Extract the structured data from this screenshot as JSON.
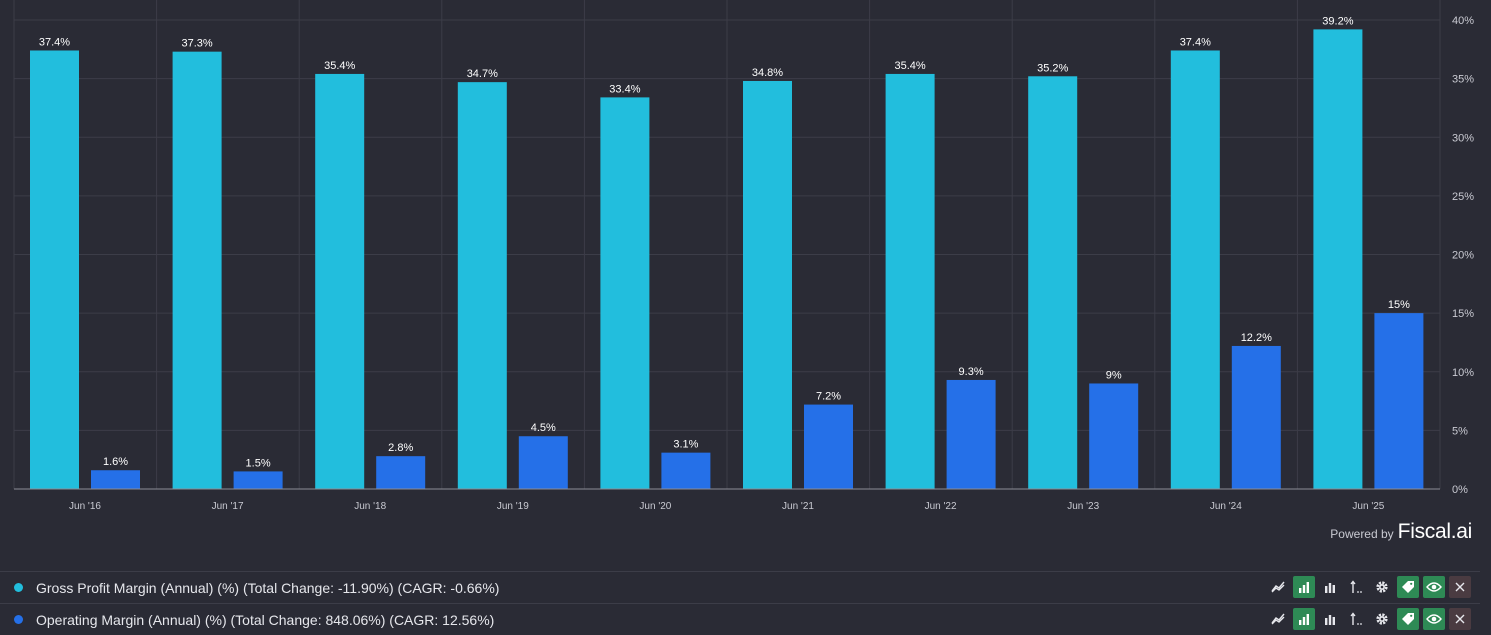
{
  "chart_data": {
    "type": "bar",
    "categories": [
      "Jun '16",
      "Jun '17",
      "Jun '18",
      "Jun '19",
      "Jun '20",
      "Jun '21",
      "Jun '22",
      "Jun '23",
      "Jun '24",
      "Jun '25"
    ],
    "series": [
      {
        "name": "Gross Profit Margin (Annual) (%)",
        "color": "#22bedd",
        "values": [
          37.4,
          37.3,
          35.4,
          34.7,
          33.4,
          34.8,
          35.4,
          35.2,
          37.4,
          39.2
        ],
        "labels": [
          "37.4%",
          "37.3%",
          "35.4%",
          "34.7%",
          "33.4%",
          "34.8%",
          "35.4%",
          "35.2%",
          "37.4%",
          "39.2%"
        ]
      },
      {
        "name": "Operating Margin (Annual) (%)",
        "color": "#2570e8",
        "values": [
          1.6,
          1.5,
          2.8,
          4.5,
          3.1,
          7.2,
          9.3,
          9.0,
          12.2,
          15.0
        ],
        "labels": [
          "1.6%",
          "1.5%",
          "2.8%",
          "4.5%",
          "3.1%",
          "7.2%",
          "9.3%",
          "9%",
          "12.2%",
          "15%"
        ]
      }
    ],
    "ylim": [
      0,
      40
    ],
    "yticks": [
      0,
      5,
      10,
      15,
      20,
      25,
      30,
      35,
      40
    ],
    "ytick_labels": [
      "0%",
      "5%",
      "10%",
      "15%",
      "20%",
      "25%",
      "30%",
      "35%",
      "40%"
    ],
    "y_axis_side": "right",
    "grid": true
  },
  "branding": {
    "powered_by": "Powered by",
    "brand": "Fiscal.ai"
  },
  "legend": [
    {
      "text": "Gross Profit Margin (Annual) (%) (Total Change: -11.90%) (CAGR: -0.66%)",
      "color": "#22bedd"
    },
    {
      "text": "Operating Margin (Annual) (%) (Total Change: 848.06%) (CAGR: 12.56%)",
      "color": "#2570e8"
    }
  ],
  "colors": {
    "background": "#2a2b35",
    "grid": "#3c3d48",
    "axis_text": "#c9cad2",
    "tool_active": "#2e8a55"
  }
}
